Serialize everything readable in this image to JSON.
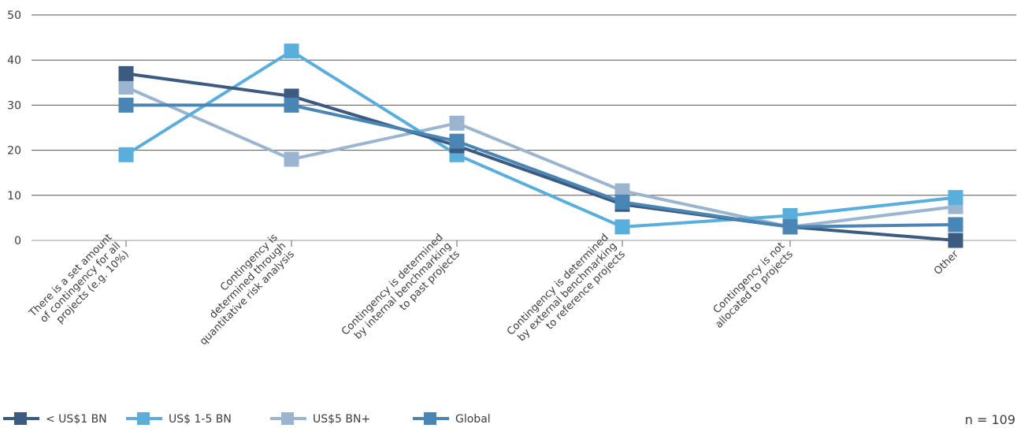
{
  "chart_data": {
    "type": "line",
    "title": "",
    "xlabel": "",
    "ylabel": "",
    "ylim": [
      0,
      50
    ],
    "yticks": [
      0,
      10,
      20,
      30,
      40,
      50
    ],
    "grid": true,
    "legend_position": "bottom-left",
    "categories": [
      [
        "There is a set amount",
        "of contingency for all",
        "projects (e.g. 10%)"
      ],
      [
        "Contingency is",
        "determined through",
        "quantitative risk analysis"
      ],
      [
        "Contingency is determined",
        "by internal benchmarking",
        "to past projects"
      ],
      [
        "Contingency is determined",
        "by external benchmarking",
        "to reference projects"
      ],
      [
        "Contingency is not",
        "allocated to projects"
      ],
      [
        "Other"
      ]
    ],
    "series": [
      {
        "name": "< US$1 BN",
        "color": "#3d5a80",
        "values": [
          37,
          32,
          21,
          8,
          3,
          0
        ]
      },
      {
        "name": "US$ 1-5 BN",
        "color": "#5aaedb",
        "values": [
          19,
          42,
          19,
          3,
          5.5,
          9.5
        ]
      },
      {
        "name": "US$5 BN+",
        "color": "#9bb5d0",
        "values": [
          34,
          18,
          26,
          11,
          3,
          7.5
        ]
      },
      {
        "name": "Global",
        "color": "#4a86b5",
        "values": [
          30,
          30,
          22,
          8.5,
          3,
          3.5
        ]
      }
    ]
  },
  "footnote": "n = 109"
}
